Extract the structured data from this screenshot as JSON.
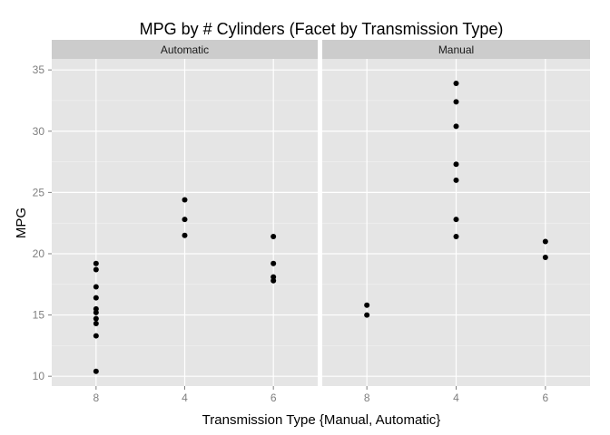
{
  "chart_data": {
    "type": "scatter",
    "title": "MPG by # Cylinders (Facet by Transmission Type)",
    "xlabel": "Transmission Type {Manual, Automatic}",
    "ylabel": "MPG",
    "x_categories": [
      "8",
      "4",
      "6"
    ],
    "y_ticks": [
      10,
      15,
      20,
      25,
      30,
      35
    ],
    "ylim": [
      9.2,
      35.9
    ],
    "grid": true,
    "facets": [
      {
        "name": "Automatic",
        "points": [
          {
            "x": "8",
            "y": 19.2
          },
          {
            "x": "8",
            "y": 18.7
          },
          {
            "x": "8",
            "y": 17.3
          },
          {
            "x": "8",
            "y": 16.4
          },
          {
            "x": "8",
            "y": 15.5
          },
          {
            "x": "8",
            "y": 15.2
          },
          {
            "x": "8",
            "y": 14.7
          },
          {
            "x": "8",
            "y": 14.3
          },
          {
            "x": "8",
            "y": 13.3
          },
          {
            "x": "8",
            "y": 10.4
          },
          {
            "x": "4",
            "y": 24.4
          },
          {
            "x": "4",
            "y": 22.8
          },
          {
            "x": "4",
            "y": 21.5
          },
          {
            "x": "6",
            "y": 21.4
          },
          {
            "x": "6",
            "y": 19.2
          },
          {
            "x": "6",
            "y": 18.1
          },
          {
            "x": "6",
            "y": 17.8
          }
        ]
      },
      {
        "name": "Manual",
        "points": [
          {
            "x": "8",
            "y": 15.8
          },
          {
            "x": "8",
            "y": 15.0
          },
          {
            "x": "4",
            "y": 33.9
          },
          {
            "x": "4",
            "y": 32.4
          },
          {
            "x": "4",
            "y": 30.4
          },
          {
            "x": "4",
            "y": 27.3
          },
          {
            "x": "4",
            "y": 26.0
          },
          {
            "x": "4",
            "y": 22.8
          },
          {
            "x": "4",
            "y": 21.4
          },
          {
            "x": "6",
            "y": 21.0
          },
          {
            "x": "6",
            "y": 19.7
          }
        ]
      }
    ]
  },
  "colors": {
    "panel_background": "#e5e5e5",
    "strip_background": "#cccccc",
    "major_grid": "#ffffff",
    "minor_grid": "#f2f2f2",
    "point": "#000000",
    "tick_label": "#7f7f7f"
  }
}
